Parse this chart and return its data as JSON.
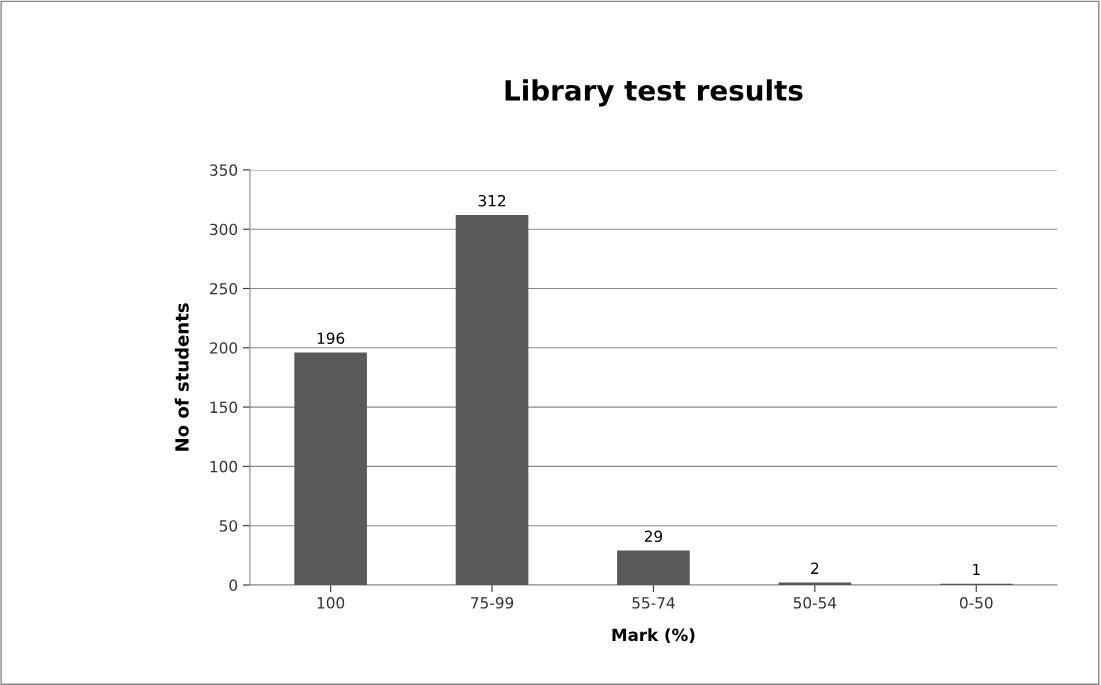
{
  "chart_data": {
    "type": "bar",
    "title": "Library test results",
    "xlabel": "Mark (%)",
    "ylabel": "No of students",
    "categories": [
      "100",
      "75-99",
      "55-74",
      "50-54",
      "0-50"
    ],
    "values": [
      196,
      312,
      29,
      2,
      1
    ],
    "color": "#595959",
    "ylim": [
      0,
      350
    ],
    "yticks": [
      0,
      50,
      100,
      150,
      200,
      250,
      300,
      350
    ],
    "grid": "y",
    "data_labels": true
  }
}
